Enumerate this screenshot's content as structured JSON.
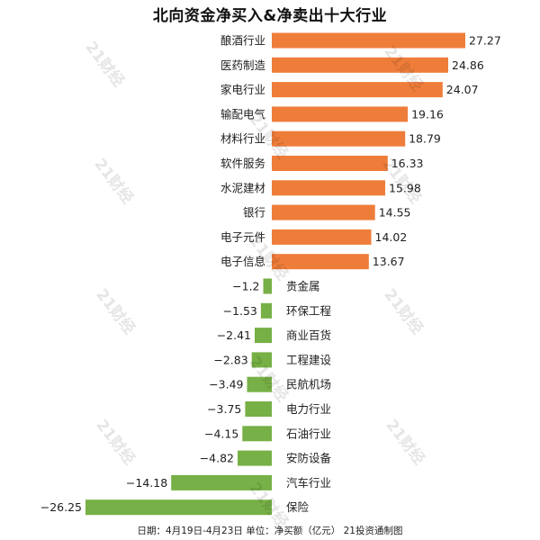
{
  "chart_data": {
    "type": "bar",
    "orientation": "horizontal",
    "title": "北向资金净买入&净卖出十大行业",
    "categories": [
      "酿酒行业",
      "医药制造",
      "家电行业",
      "输配电气",
      "材料行业",
      "软件服务",
      "水泥建材",
      "银行",
      "电子元件",
      "电子信息",
      "贵金属",
      "环保工程",
      "商业百货",
      "工程建设",
      "民航机场",
      "电力行业",
      "石油行业",
      "安防设备",
      "汽车行业",
      "保险"
    ],
    "values": [
      27.27,
      24.86,
      24.07,
      19.16,
      18.79,
      16.33,
      15.98,
      14.55,
      14.02,
      13.67,
      -1.2,
      -1.53,
      -2.41,
      -2.83,
      -3.49,
      -3.75,
      -4.15,
      -4.82,
      -14.18,
      -26.25
    ],
    "value_labels": [
      "27.27",
      "24.86",
      "24.07",
      "19.16",
      "18.79",
      "16.33",
      "15.98",
      "14.55",
      "14.02",
      "13.67",
      "−1.2",
      "−1.53",
      "−2.41",
      "−2.83",
      "−3.49",
      "−3.75",
      "−4.15",
      "−4.82",
      "−14.18",
      "−26.25"
    ],
    "xlim": [
      -26.25,
      27.27
    ],
    "grid": false,
    "legend": "none",
    "colors": {
      "positive": "#EF7D3A",
      "negative": "#77B046"
    }
  },
  "footer": {
    "note": "日期：4月19日-4月23日 单位：净买额（亿元） 21投资通制图"
  },
  "watermark": {
    "text": "21财经"
  }
}
